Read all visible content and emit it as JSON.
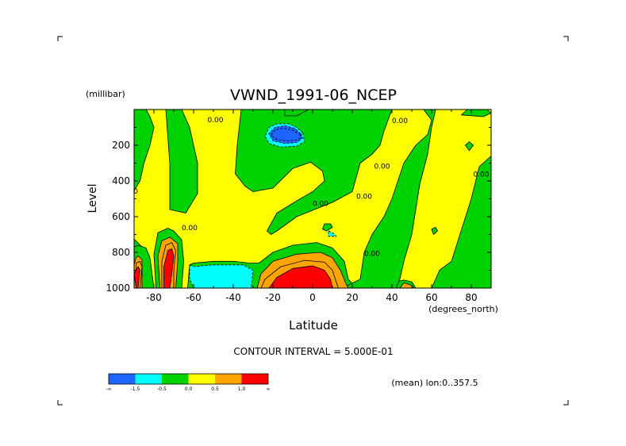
{
  "chart_data": {
    "type": "contour",
    "title": "VWND_1991-06_NCEP",
    "xlabel": "Latitude",
    "x_unit": "(degrees_north)",
    "ylabel": "Level",
    "y_unit": "(millibar)",
    "xlim": [
      -90,
      90
    ],
    "ylim": [
      1000,
      0
    ],
    "x_ticks": [
      {
        "value": -80,
        "label": "-80"
      },
      {
        "value": -60,
        "label": "-60"
      },
      {
        "value": -40,
        "label": "-40"
      },
      {
        "value": -20,
        "label": "-20"
      },
      {
        "value": 0,
        "label": "0"
      },
      {
        "value": 20,
        "label": "20"
      },
      {
        "value": 40,
        "label": "40"
      },
      {
        "value": 60,
        "label": "60"
      },
      {
        "value": 80,
        "label": "80"
      }
    ],
    "y_ticks": [
      {
        "value": 200,
        "label": "200"
      },
      {
        "value": 400,
        "label": "400"
      },
      {
        "value": 600,
        "label": "600"
      },
      {
        "value": 800,
        "label": "800"
      },
      {
        "value": 1000,
        "label": "1000"
      }
    ],
    "contour_interval_text": "CONTOUR INTERVAL = 5.000E-01",
    "subtitle": "(mean) lon:0..357.5",
    "colorbar": {
      "colors": [
        "#1e64ff",
        "#00ffff",
        "#00d200",
        "#ffff00",
        "#ffa500",
        "#ff0000"
      ],
      "labels": [
        "-∞",
        "-1.5",
        "-0.5",
        "0.0",
        "0.5",
        "1.0",
        "∞"
      ]
    },
    "contour_labels": [
      {
        "lat": -92,
        "p": 470,
        "text": "0.00"
      },
      {
        "lat": -62,
        "p": 675,
        "text": "0.00"
      },
      {
        "lat": -49,
        "p": 70,
        "text": "0.00"
      },
      {
        "lat": 4,
        "p": 540,
        "text": "0.00"
      },
      {
        "lat": 26,
        "p": 500,
        "text": "0.00"
      },
      {
        "lat": 35,
        "p": 330,
        "text": "0.00"
      },
      {
        "lat": 44,
        "p": 75,
        "text": "0.00"
      },
      {
        "lat": 85,
        "p": 375,
        "text": "0.00"
      },
      {
        "lat": 30,
        "p": 820,
        "text": "0.00"
      }
    ],
    "regions": [
      {
        "level": 0,
        "pts": [
          [
            -2,
            90
          ],
          [
            -2,
            55
          ],
          [
            -12,
            45
          ],
          [
            -22,
            55
          ],
          [
            -28,
            90
          ],
          [
            -28,
            150
          ],
          [
            -26,
            200
          ],
          [
            -18,
            230
          ],
          [
            -8,
            225
          ],
          [
            -4,
            195
          ]
        ]
      },
      {
        "level": 0,
        "pts": [
          [
            -90,
            725
          ],
          [
            -90,
            800
          ],
          [
            -86,
            770
          ]
        ]
      },
      {
        "level": 0,
        "pts": [
          [
            -90,
            1000
          ],
          [
            -90,
            770
          ],
          [
            -88,
            760
          ],
          [
            -84,
            775
          ],
          [
            -82,
            830
          ],
          [
            -80,
            1000
          ]
        ]
      },
      {
        "level": 0,
        "pts": [
          [
            -79,
            1000
          ],
          [
            -80,
            810
          ],
          [
            -78,
            690
          ],
          [
            -73,
            665
          ],
          [
            -70,
            680
          ],
          [
            -66,
            730
          ],
          [
            -65,
            850
          ],
          [
            -66,
            1000
          ]
        ]
      },
      {
        "level": 0,
        "pts": [
          [
            -63,
            1000
          ],
          [
            -62,
            870
          ],
          [
            -60,
            860
          ],
          [
            -50,
            850
          ],
          [
            -40,
            850
          ],
          [
            -32,
            860
          ],
          [
            -27,
            860
          ],
          [
            -20,
            800
          ],
          [
            -10,
            760
          ],
          [
            2,
            745
          ],
          [
            10,
            775
          ],
          [
            16,
            850
          ],
          [
            18,
            950
          ],
          [
            22,
            1000
          ]
        ]
      },
      {
        "level": 0,
        "pts": [
          [
            40,
            1000
          ],
          [
            42,
            965
          ],
          [
            46,
            955
          ],
          [
            50,
            965
          ],
          [
            52,
            1000
          ]
        ]
      },
      {
        "level": 0,
        "pts": [
          [
            -90,
            0
          ],
          [
            -90,
            455
          ],
          [
            -87,
            400
          ],
          [
            -85,
            300
          ],
          [
            -82,
            200
          ],
          [
            -80,
            100
          ],
          [
            -82,
            40
          ],
          [
            -84,
            0
          ]
        ]
      },
      {
        "level": 0,
        "pts": [
          [
            -74,
            0
          ],
          [
            -72,
            300
          ],
          [
            -72,
            560
          ],
          [
            -64,
            580
          ],
          [
            -58,
            470
          ],
          [
            -58,
            300
          ],
          [
            -62,
            100
          ],
          [
            -66,
            0
          ]
        ]
      },
      {
        "level": 0,
        "pts": [
          [
            -36,
            0
          ],
          [
            -38,
            200
          ],
          [
            -39,
            360
          ],
          [
            -34,
            430
          ],
          [
            -30,
            460
          ],
          [
            -20,
            440
          ],
          [
            -10,
            330
          ],
          [
            -1,
            295
          ],
          [
            5,
            345
          ],
          [
            6,
            400
          ],
          [
            0,
            460
          ],
          [
            -10,
            525
          ],
          [
            -18,
            580
          ],
          [
            -23,
            680
          ],
          [
            -21,
            700
          ],
          [
            -18,
            680
          ],
          [
            -8,
            600
          ],
          [
            10,
            520
          ],
          [
            20,
            460
          ],
          [
            24,
            300
          ],
          [
            30,
            250
          ],
          [
            34,
            200
          ],
          [
            36,
            120
          ],
          [
            40,
            0
          ]
        ]
      },
      {
        "level": 0,
        "pts": [
          [
            -14,
            0
          ],
          [
            -14,
            35
          ],
          [
            -8,
            35
          ],
          [
            -2,
            0
          ]
        ]
      },
      {
        "level": 0,
        "pts": [
          [
            6,
            640
          ],
          [
            5,
            670
          ],
          [
            7,
            680
          ],
          [
            10,
            660
          ],
          [
            9,
            640
          ]
        ]
      },
      {
        "level": 0,
        "pts": [
          [
            15,
            1000
          ],
          [
            24,
            950
          ],
          [
            26,
            800
          ],
          [
            30,
            700
          ],
          [
            36,
            600
          ],
          [
            40,
            500
          ],
          [
            46,
            300
          ],
          [
            52,
            200
          ],
          [
            58,
            140
          ],
          [
            60,
            60
          ],
          [
            56,
            0
          ],
          [
            62,
            0
          ],
          [
            60,
            100
          ],
          [
            58,
            250
          ],
          [
            54,
            420
          ],
          [
            52,
            560
          ],
          [
            50,
            700
          ],
          [
            46,
            850
          ],
          [
            44,
            950
          ],
          [
            42,
            1000
          ]
        ]
      },
      {
        "level": 0,
        "pts": [
          [
            60,
            1000
          ],
          [
            64,
            900
          ],
          [
            70,
            850
          ],
          [
            80,
            500
          ],
          [
            84,
            320
          ],
          [
            90,
            260
          ],
          [
            90,
            1000
          ]
        ]
      },
      {
        "level": 0,
        "pts": [
          [
            75,
            30
          ],
          [
            78,
            0
          ],
          [
            88,
            0
          ],
          [
            90,
            20
          ],
          [
            86,
            40
          ]
        ]
      },
      {
        "level": 0,
        "pts": [
          [
            77,
            200
          ],
          [
            79,
            180
          ],
          [
            81,
            200
          ],
          [
            79,
            230
          ]
        ]
      },
      {
        "level": 0,
        "pts": [
          [
            60,
            670
          ],
          [
            62,
            660
          ],
          [
            63,
            680
          ],
          [
            61,
            700
          ]
        ]
      },
      {
        "level": 1,
        "pts": [
          [
            -90,
            870
          ],
          [
            -89,
            830
          ],
          [
            -88,
            820
          ],
          [
            -86,
            840
          ],
          [
            -86,
            1000
          ],
          [
            -90,
            1000
          ]
        ]
      },
      {
        "level": 1,
        "pts": [
          [
            -77,
            1000
          ],
          [
            -78,
            820
          ],
          [
            -76,
            735
          ],
          [
            -72,
            715
          ],
          [
            -68,
            750
          ],
          [
            -68,
            850
          ],
          [
            -69,
            1000
          ]
        ]
      },
      {
        "level": 1,
        "pts": [
          [
            -28,
            1000
          ],
          [
            -26,
            920
          ],
          [
            -20,
            850
          ],
          [
            -8,
            810
          ],
          [
            4,
            800
          ],
          [
            10,
            830
          ],
          [
            14,
            900
          ],
          [
            17,
            980
          ],
          [
            18,
            1000
          ]
        ]
      },
      {
        "level": 1,
        "pts": [
          [
            44,
            1000
          ],
          [
            46,
            970
          ],
          [
            50,
            985
          ],
          [
            51,
            1000
          ]
        ]
      },
      {
        "level": 2,
        "pts": [
          [
            -89,
            1000
          ],
          [
            -89,
            860
          ],
          [
            -87,
            850
          ],
          [
            -86,
            880
          ],
          [
            -87,
            1000
          ]
        ]
      },
      {
        "level": 2,
        "pts": [
          [
            -76,
            1000
          ],
          [
            -76,
            850
          ],
          [
            -74,
            760
          ],
          [
            -71,
            745
          ],
          [
            -69,
            790
          ],
          [
            -70,
            900
          ],
          [
            -70,
            1000
          ]
        ]
      },
      {
        "level": 2,
        "pts": [
          [
            -26,
            1000
          ],
          [
            -24,
            950
          ],
          [
            -16,
            880
          ],
          [
            -4,
            845
          ],
          [
            6,
            855
          ],
          [
            10,
            900
          ],
          [
            12,
            970
          ],
          [
            13,
            1000
          ]
        ]
      },
      {
        "level": 3,
        "pts": [
          [
            -89,
            1000
          ],
          [
            -90,
            920
          ],
          [
            -88,
            880
          ],
          [
            -87,
            900
          ],
          [
            -88,
            1000
          ]
        ]
      },
      {
        "level": 3,
        "pts": [
          [
            -75,
            1000
          ],
          [
            -75,
            880
          ],
          [
            -73,
            790
          ],
          [
            -71,
            780
          ],
          [
            -70,
            820
          ],
          [
            -71,
            920
          ],
          [
            -72,
            1000
          ]
        ]
      },
      {
        "level": 3,
        "pts": [
          [
            -22,
            1000
          ],
          [
            -18,
            940
          ],
          [
            -10,
            890
          ],
          [
            0,
            875
          ],
          [
            6,
            900
          ],
          [
            9,
            950
          ],
          [
            10,
            1000
          ]
        ]
      },
      {
        "level": -1,
        "pts": [
          [
            -62,
            870
          ],
          [
            -60,
            880
          ],
          [
            -50,
            870
          ],
          [
            -35,
            870
          ],
          [
            -30,
            900
          ],
          [
            -31,
            1000
          ],
          [
            -60,
            1000
          ],
          [
            -62,
            950
          ]
        ]
      },
      {
        "level": -1,
        "pts": [
          [
            8,
            680
          ],
          [
            10,
            690
          ],
          [
            12,
            710
          ],
          [
            8,
            710
          ]
        ]
      },
      {
        "level": -1,
        "pts": [
          [
            -5,
            130
          ],
          [
            -8,
            100
          ],
          [
            -12,
            80
          ],
          [
            -18,
            80
          ],
          [
            -22,
            100
          ],
          [
            -24,
            150
          ],
          [
            -22,
            190
          ],
          [
            -16,
            210
          ],
          [
            -8,
            205
          ],
          [
            -4,
            180
          ]
        ]
      },
      {
        "level": -2,
        "pts": [
          [
            -6,
            135
          ],
          [
            -9,
            105
          ],
          [
            -14,
            90
          ],
          [
            -19,
            100
          ],
          [
            -22,
            135
          ],
          [
            -20,
            175
          ],
          [
            -14,
            190
          ],
          [
            -8,
            185
          ],
          [
            -5,
            160
          ]
        ]
      },
      {
        "level": -3,
        "pts": [
          [
            -6,
            145
          ],
          [
            -10,
            115
          ],
          [
            -15,
            105
          ],
          [
            -19,
            115
          ],
          [
            -21,
            145
          ],
          [
            -18,
            168
          ],
          [
            -13,
            175
          ],
          [
            -8,
            170
          ],
          [
            -6,
            158
          ]
        ]
      }
    ]
  }
}
